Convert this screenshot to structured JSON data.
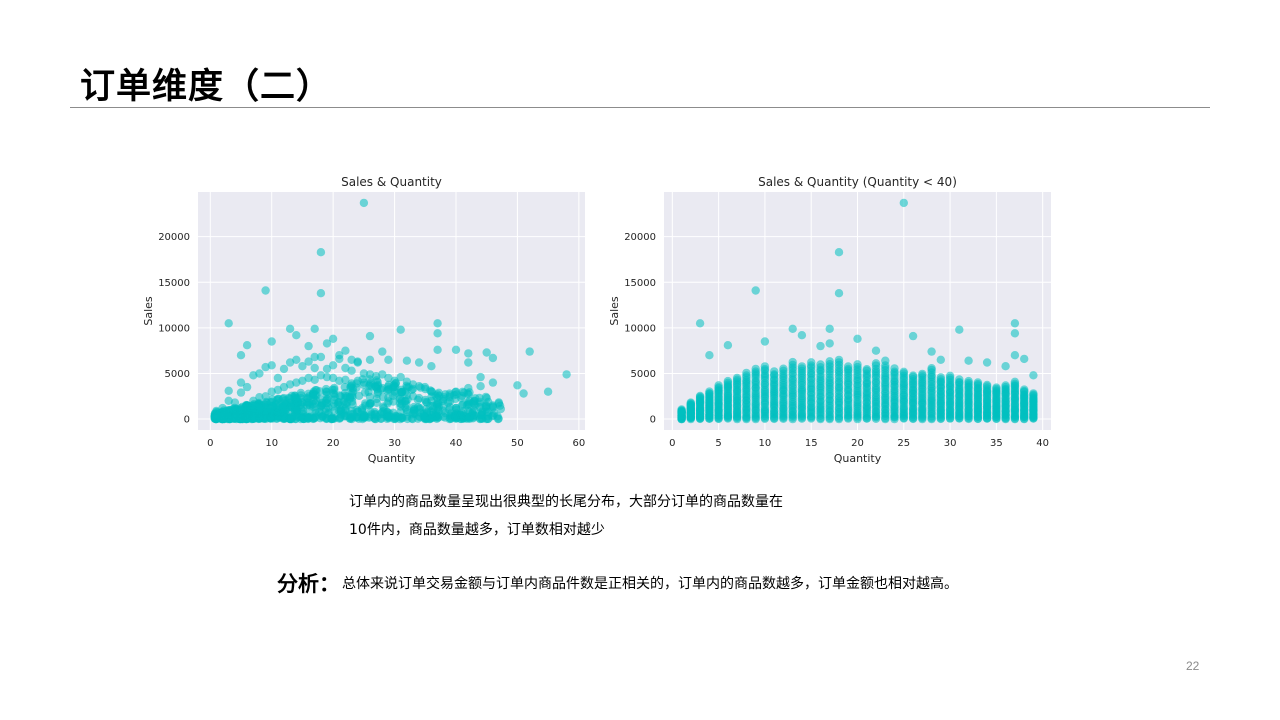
{
  "slide": {
    "title": "订单维度（二）",
    "observation_lines": [
      "订单内的商品数量呈现出很典型的长尾分布，大部分订单的商品数量在",
      "10件内，商品数量越多，订单数相对越少"
    ],
    "analysis_label": "分析：",
    "analysis_text": "总体来说订单交易金额与订单内商品件数是正相关的，订单内的商品数越多，订单金额也相对越高。",
    "page_number": "22"
  },
  "colors": {
    "point": "#00bfc0",
    "plot_background": "#eaeaf2",
    "gridline": "#ffffff"
  },
  "chart_data": [
    {
      "type": "scatter",
      "title": "Sales & Quantity",
      "xlabel": "Quantity",
      "ylabel": "Sales",
      "xlim": [
        -2,
        61
      ],
      "ylim": [
        -1200,
        24900
      ],
      "xticks": [
        0,
        10,
        20,
        30,
        40,
        50,
        60
      ],
      "yticks": [
        0,
        5000,
        10000,
        15000,
        20000
      ],
      "grid": true,
      "points": [
        [
          1,
          200
        ],
        [
          1,
          500
        ],
        [
          1,
          900
        ],
        [
          2,
          300
        ],
        [
          2,
          1200
        ],
        [
          3,
          600
        ],
        [
          3,
          2000
        ],
        [
          3,
          3100
        ],
        [
          4,
          900
        ],
        [
          4,
          1800
        ],
        [
          5,
          1200
        ],
        [
          5,
          2900
        ],
        [
          5,
          4000
        ],
        [
          6,
          1500
        ],
        [
          6,
          3500
        ],
        [
          7,
          2000
        ],
        [
          7,
          4800
        ],
        [
          8,
          2400
        ],
        [
          8,
          5000
        ],
        [
          9,
          2500
        ],
        [
          9,
          5700
        ],
        [
          10,
          3000
        ],
        [
          10,
          5900
        ],
        [
          11,
          3200
        ],
        [
          11,
          4500
        ],
        [
          12,
          3500
        ],
        [
          12,
          5500
        ],
        [
          13,
          3800
        ],
        [
          13,
          6200
        ],
        [
          14,
          4000
        ],
        [
          14,
          6500
        ],
        [
          15,
          4200
        ],
        [
          15,
          5800
        ],
        [
          16,
          4500
        ],
        [
          16,
          6300
        ],
        [
          17,
          4300
        ],
        [
          17,
          5600
        ],
        [
          18,
          4800
        ],
        [
          18,
          6800
        ],
        [
          19,
          4600
        ],
        [
          19,
          5500
        ],
        [
          20,
          4500
        ],
        [
          20,
          5900
        ],
        [
          21,
          4200
        ],
        [
          21,
          6600
        ],
        [
          22,
          4300
        ],
        [
          22,
          5600
        ],
        [
          23,
          3900
        ],
        [
          23,
          5300
        ],
        [
          24,
          4200
        ],
        [
          24,
          6200
        ],
        [
          25,
          4000
        ],
        [
          25,
          5000
        ],
        [
          26,
          3800
        ],
        [
          26,
          4900
        ],
        [
          27,
          3500
        ],
        [
          27,
          4700
        ],
        [
          28,
          3400
        ],
        [
          28,
          4900
        ],
        [
          29,
          3200
        ],
        [
          29,
          4500
        ],
        [
          30,
          3000
        ],
        [
          30,
          4200
        ],
        [
          31,
          2900
        ],
        [
          31,
          4600
        ],
        [
          32,
          2600
        ],
        [
          32,
          4100
        ],
        [
          33,
          2500
        ],
        [
          33,
          3800
        ],
        [
          34,
          2300
        ],
        [
          34,
          3600
        ],
        [
          35,
          2100
        ],
        [
          35,
          3300
        ],
        [
          36,
          2000
        ],
        [
          36,
          3000
        ],
        [
          37,
          1800
        ],
        [
          37,
          2700
        ],
        [
          38,
          1500
        ],
        [
          38,
          2400
        ],
        [
          39,
          1300
        ],
        [
          39,
          2600
        ],
        [
          40,
          1200
        ],
        [
          40,
          3000
        ],
        [
          41,
          1500
        ],
        [
          42,
          900
        ],
        [
          42,
          3400
        ],
        [
          43,
          2000
        ],
        [
          44,
          3600
        ],
        [
          45,
          800
        ],
        [
          45,
          2300
        ],
        [
          46,
          1500
        ],
        [
          46,
          4000
        ],
        [
          3,
          10500
        ],
        [
          5,
          7000
        ],
        [
          6,
          8100
        ],
        [
          9,
          14100
        ],
        [
          10,
          8500
        ],
        [
          13,
          9900
        ],
        [
          14,
          9200
        ],
        [
          16,
          8000
        ],
        [
          17,
          9900
        ],
        [
          17,
          6800
        ],
        [
          18,
          18300
        ],
        [
          18,
          13800
        ],
        [
          19,
          8300
        ],
        [
          20,
          8800
        ],
        [
          21,
          7000
        ],
        [
          22,
          7500
        ],
        [
          23,
          6500
        ],
        [
          24,
          6300
        ],
        [
          25,
          23700
        ],
        [
          26,
          9100
        ],
        [
          26,
          6500
        ],
        [
          28,
          7400
        ],
        [
          29,
          6500
        ],
        [
          31,
          9800
        ],
        [
          32,
          6400
        ],
        [
          34,
          6200
        ],
        [
          36,
          5800
        ],
        [
          37,
          10500
        ],
        [
          37,
          9400
        ],
        [
          37,
          7600
        ],
        [
          40,
          7600
        ],
        [
          42,
          7200
        ],
        [
          42,
          6200
        ],
        [
          44,
          4600
        ],
        [
          45,
          7300
        ],
        [
          46,
          6700
        ],
        [
          50,
          3700
        ],
        [
          51,
          2800
        ],
        [
          52,
          7400
        ],
        [
          55,
          3000
        ],
        [
          58,
          4900
        ]
      ]
    },
    {
      "type": "scatter",
      "title": "Sales & Quantity (Quantity < 40)",
      "xlabel": "Quantity",
      "ylabel": "Sales",
      "xlim": [
        -0.9,
        40.9
      ],
      "ylim": [
        -1200,
        24900
      ],
      "xticks": [
        0,
        5,
        10,
        15,
        20,
        25,
        30,
        35,
        40
      ],
      "yticks": [
        0,
        5000,
        10000,
        15000,
        20000
      ],
      "grid": true,
      "columns": [
        {
          "x": 1,
          "max": 1000
        },
        {
          "x": 2,
          "max": 1800
        },
        {
          "x": 3,
          "max": 2500
        },
        {
          "x": 4,
          "max": 3000
        },
        {
          "x": 5,
          "max": 3700
        },
        {
          "x": 6,
          "max": 4200
        },
        {
          "x": 7,
          "max": 4500
        },
        {
          "x": 8,
          "max": 5000
        },
        {
          "x": 9,
          "max": 5500
        },
        {
          "x": 10,
          "max": 5800
        },
        {
          "x": 11,
          "max": 5200
        },
        {
          "x": 12,
          "max": 5500
        },
        {
          "x": 13,
          "max": 6200
        },
        {
          "x": 14,
          "max": 5800
        },
        {
          "x": 15,
          "max": 6200
        },
        {
          "x": 16,
          "max": 6000
        },
        {
          "x": 17,
          "max": 6300
        },
        {
          "x": 18,
          "max": 6500
        },
        {
          "x": 19,
          "max": 5800
        },
        {
          "x": 20,
          "max": 6000
        },
        {
          "x": 21,
          "max": 5500
        },
        {
          "x": 22,
          "max": 6100
        },
        {
          "x": 23,
          "max": 5900
        },
        {
          "x": 24,
          "max": 5500
        },
        {
          "x": 25,
          "max": 5200
        },
        {
          "x": 26,
          "max": 4800
        },
        {
          "x": 27,
          "max": 5000
        },
        {
          "x": 28,
          "max": 5600
        },
        {
          "x": 29,
          "max": 4600
        },
        {
          "x": 30,
          "max": 4700
        },
        {
          "x": 31,
          "max": 4300
        },
        {
          "x": 32,
          "max": 4200
        },
        {
          "x": 33,
          "max": 4000
        },
        {
          "x": 34,
          "max": 3700
        },
        {
          "x": 35,
          "max": 3500
        },
        {
          "x": 36,
          "max": 3700
        },
        {
          "x": 37,
          "max": 4100
        },
        {
          "x": 38,
          "max": 3200
        },
        {
          "x": 39,
          "max": 2800
        }
      ],
      "outliers": [
        [
          3,
          10500
        ],
        [
          4,
          7000
        ],
        [
          6,
          8100
        ],
        [
          9,
          14100
        ],
        [
          10,
          8500
        ],
        [
          13,
          9900
        ],
        [
          14,
          9200
        ],
        [
          16,
          8000
        ],
        [
          17,
          9900
        ],
        [
          17,
          8300
        ],
        [
          18,
          18300
        ],
        [
          18,
          13800
        ],
        [
          20,
          8800
        ],
        [
          22,
          7500
        ],
        [
          23,
          6400
        ],
        [
          25,
          23700
        ],
        [
          26,
          9100
        ],
        [
          28,
          7400
        ],
        [
          29,
          6500
        ],
        [
          31,
          9800
        ],
        [
          32,
          6400
        ],
        [
          34,
          6200
        ],
        [
          36,
          5800
        ],
        [
          37,
          10500
        ],
        [
          37,
          9400
        ],
        [
          37,
          7000
        ],
        [
          38,
          6600
        ],
        [
          39,
          4800
        ]
      ]
    }
  ]
}
